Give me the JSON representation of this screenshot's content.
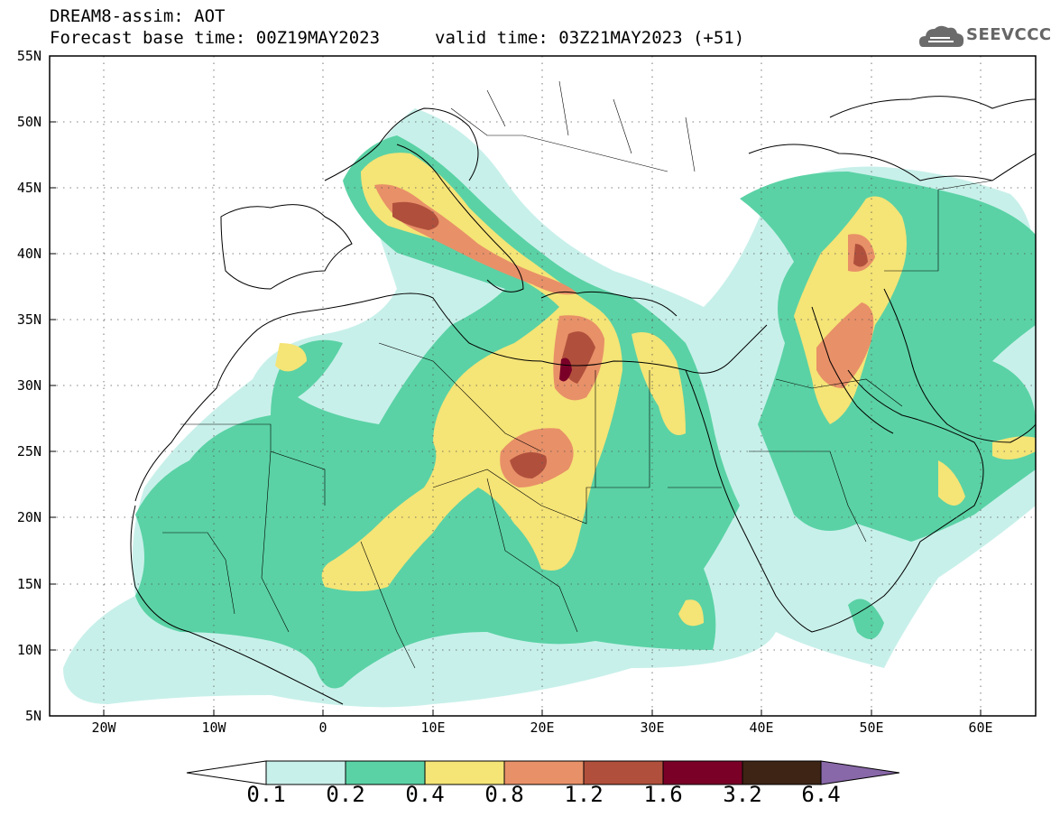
{
  "title": {
    "line1": "DREAM8-assim: AOT",
    "line2": "Forecast base time: 00Z19MAY2023",
    "valid": "valid time: 03Z21MAY2023 (+51)"
  },
  "logo": {
    "text": "SEEVCCC",
    "icon": "cloud-icon"
  },
  "map": {
    "lon_range": [
      -25,
      65
    ],
    "lat_range": [
      5,
      55
    ],
    "lat_ticks": [
      "55N",
      "50N",
      "45N",
      "40N",
      "35N",
      "30N",
      "25N",
      "20N",
      "15N",
      "10N",
      "5N"
    ],
    "lon_ticks": [
      "20W",
      "10W",
      "0",
      "10E",
      "20E",
      "30E",
      "40E",
      "50E",
      "60E"
    ],
    "grid": "dotted"
  },
  "colorbar": {
    "labels": [
      "0.1",
      "0.2",
      "0.4",
      "0.8",
      "1.2",
      "1.6",
      "3.2",
      "6.4"
    ],
    "colors": [
      "#c8f0ea",
      "#5ad2a5",
      "#f5e476",
      "#e89068",
      "#b0503c",
      "#7a0028",
      "#3d2414",
      "#8868a8"
    ]
  }
}
